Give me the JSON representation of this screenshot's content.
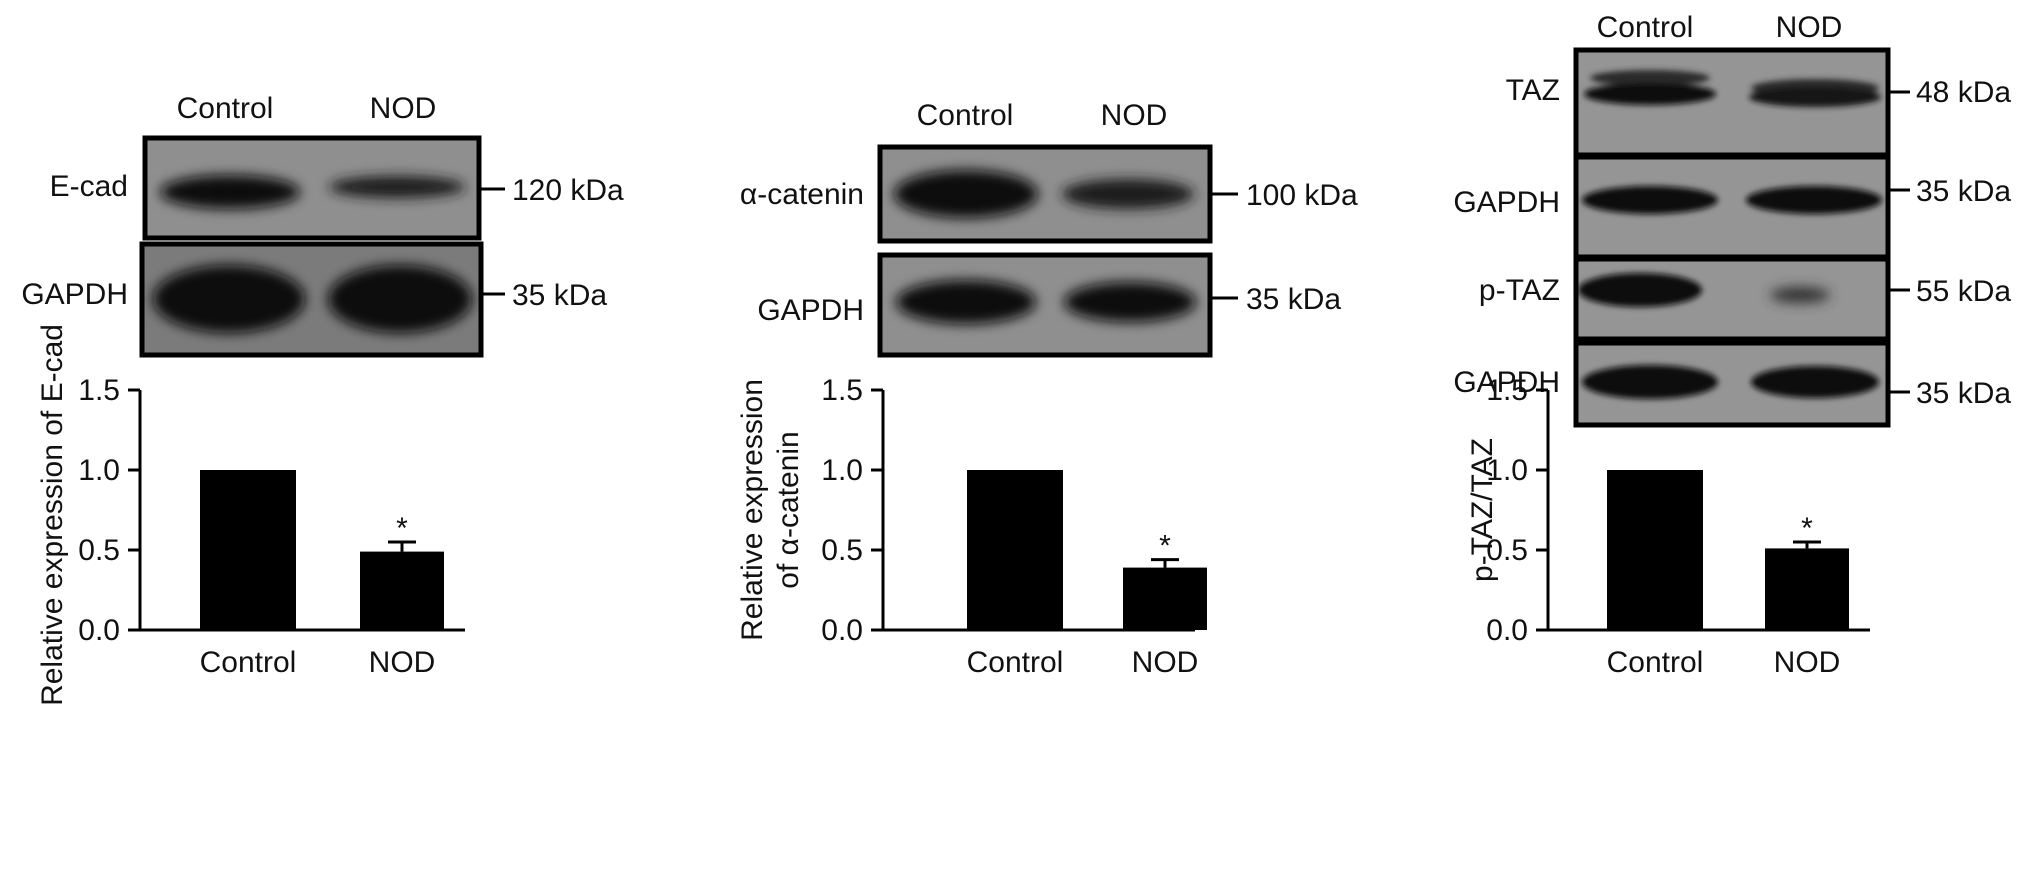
{
  "blots": [
    {
      "lanes": [
        "Control",
        "NOD"
      ],
      "rows": [
        {
          "label": "E-cad",
          "size": "120 kDa",
          "intensity": [
            1.0,
            0.55
          ]
        },
        {
          "label": "GAPDH",
          "size": "35 kDa",
          "intensity": [
            1.0,
            1.0
          ]
        }
      ]
    },
    {
      "lanes": [
        "Control",
        "NOD"
      ],
      "rows": [
        {
          "label": "α-catenin",
          "size": "100 kDa",
          "intensity": [
            1.0,
            0.45
          ]
        },
        {
          "label": "GAPDH",
          "size": "35 kDa",
          "intensity": [
            1.0,
            1.0
          ]
        }
      ]
    },
    {
      "lanes": [
        "Control",
        "NOD"
      ],
      "rows": [
        {
          "label": "TAZ",
          "size": "48 kDa",
          "intensity": [
            1.0,
            0.9
          ]
        },
        {
          "label": "GAPDH",
          "size": "35 kDa",
          "intensity": [
            1.0,
            1.0
          ]
        },
        {
          "label": "p-TAZ",
          "size": "55 kDa",
          "intensity": [
            1.0,
            0.3
          ]
        },
        {
          "label": "GAPDH",
          "size": "35 kDa",
          "intensity": [
            1.0,
            1.0
          ]
        }
      ]
    }
  ],
  "chart_data": [
    {
      "type": "bar",
      "categories": [
        "Control",
        "NOD"
      ],
      "values": [
        1.0,
        0.49
      ],
      "errors": [
        0,
        0.06
      ],
      "significance": [
        "",
        "*"
      ],
      "ylabel": [
        "Relative expression of E-cad"
      ],
      "ylim": [
        0,
        1.5
      ],
      "yticks": [
        "0.0",
        "0.5",
        "1.0",
        "1.5"
      ],
      "bar_color": "#000000"
    },
    {
      "type": "bar",
      "categories": [
        "Control",
        "NOD"
      ],
      "values": [
        1.0,
        0.39
      ],
      "errors": [
        0,
        0.05
      ],
      "significance": [
        "",
        "*"
      ],
      "ylabel": [
        "Relative expression",
        "of α-catenin"
      ],
      "ylim": [
        0,
        1.5
      ],
      "yticks": [
        "0.0",
        "0.5",
        "1.0",
        "1.5"
      ],
      "bar_color": "#000000"
    },
    {
      "type": "bar",
      "categories": [
        "Control",
        "NOD"
      ],
      "values": [
        1.0,
        0.51
      ],
      "errors": [
        0,
        0.04
      ],
      "significance": [
        "",
        "*"
      ],
      "ylabel": [
        "p-TAZ/TAZ"
      ],
      "ylim": [
        0,
        1.5
      ],
      "yticks": [
        "0.0",
        "0.5",
        "1.0",
        "1.5"
      ],
      "bar_color": "#000000"
    }
  ]
}
